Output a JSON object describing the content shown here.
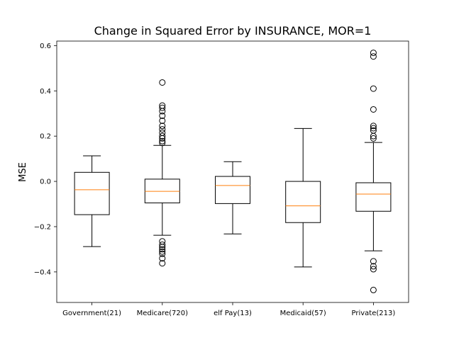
{
  "chart_data": {
    "type": "boxplot",
    "title": "Change in Squared Error by INSURANCE, MOR=1",
    "ylabel": "MSE",
    "xlabel": "",
    "ylim": [
      -0.535,
      0.62
    ],
    "yticks": [
      -0.4,
      -0.2,
      0.0,
      0.2,
      0.4,
      0.6
    ],
    "ytick_labels": [
      "−0.4",
      "−0.2",
      "0.0",
      "0.2",
      "0.4",
      "0.6"
    ],
    "grid": false,
    "colors": {
      "box": "#000000",
      "median": "#ff7f0e",
      "flier": "#000000"
    },
    "categories": [
      "Government(21)",
      "Medicare(720)",
      "elf Pay(13)",
      "Medicaid(57)",
      "Private(213)"
    ],
    "boxes": [
      {
        "whislo": -0.288,
        "q1": -0.147,
        "med": -0.037,
        "q3": 0.04,
        "whishi": 0.113,
        "fliers": []
      },
      {
        "whislo": -0.238,
        "q1": -0.095,
        "med": -0.044,
        "q3": 0.01,
        "whishi": 0.159,
        "fliers": [
          0.437,
          0.335,
          0.325,
          0.31,
          0.29,
          0.268,
          0.245,
          0.23,
          0.215,
          0.2,
          0.19,
          0.178,
          0.17,
          -0.265,
          -0.28,
          -0.29,
          -0.3,
          -0.31,
          -0.32,
          -0.34,
          -0.362
        ]
      },
      {
        "whislo": -0.232,
        "q1": -0.098,
        "med": -0.018,
        "q3": 0.022,
        "whishi": 0.087,
        "fliers": []
      },
      {
        "whislo": -0.378,
        "q1": -0.182,
        "med": -0.108,
        "q3": 0.0,
        "whishi": 0.234,
        "fliers": []
      },
      {
        "whislo": -0.307,
        "q1": -0.132,
        "med": -0.056,
        "q3": -0.006,
        "whishi": 0.172,
        "fliers": [
          0.568,
          0.552,
          0.41,
          0.318,
          0.245,
          0.235,
          0.225,
          0.2,
          0.19,
          -0.353,
          -0.375,
          -0.388,
          -0.48
        ]
      }
    ]
  }
}
